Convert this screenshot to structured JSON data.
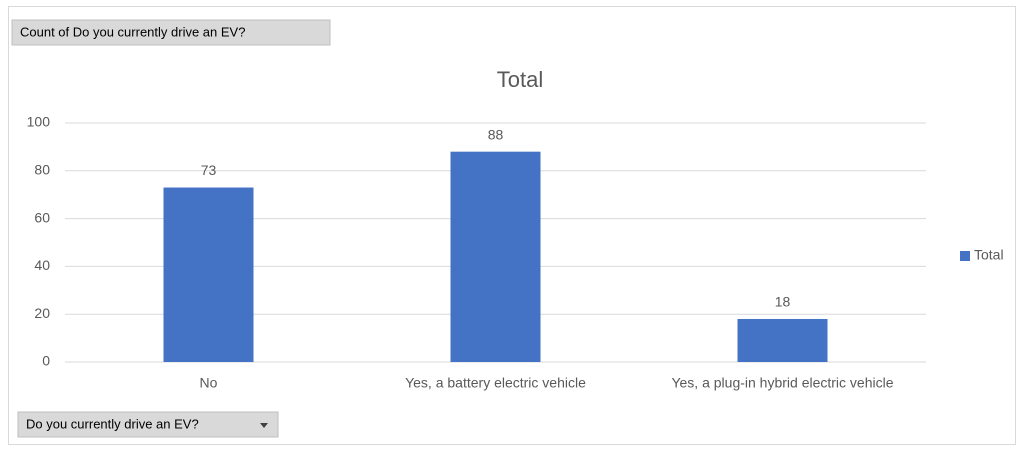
{
  "chart_data": {
    "type": "bar",
    "title": "Total",
    "value_field": "Count of Do you currently drive an EV?",
    "axis_field": "Do you currently drive an EV?",
    "categories": [
      "No",
      "Yes, a battery electric vehicle",
      "Yes, a plug-in hybrid electric vehicle"
    ],
    "series": [
      {
        "name": "Total",
        "color": "#4472c4",
        "values": [
          73,
          88,
          18
        ]
      }
    ],
    "ylim": [
      0,
      100
    ],
    "yticks": [
      0,
      20,
      40,
      60,
      80,
      100
    ],
    "grid": true,
    "legend": "right",
    "data_labels": true
  }
}
